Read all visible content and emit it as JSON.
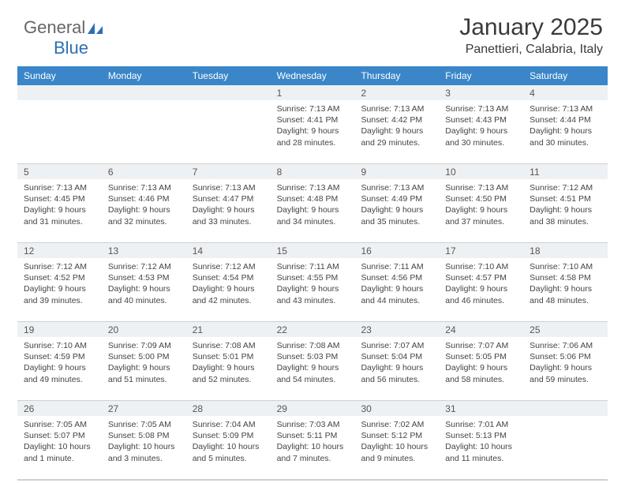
{
  "logo": {
    "part1": "General",
    "part2": "Blue"
  },
  "title": {
    "month": "January 2025",
    "location": "Panettieri, Calabria, Italy"
  },
  "colors": {
    "header_bg": "#3a86c8",
    "header_text": "#ffffff",
    "daynum_bg": "#eef1f4",
    "divider": "#d8d8d8",
    "text": "#444444",
    "logo_gray": "#666666",
    "logo_blue": "#2d6fb5"
  },
  "day_headers": [
    "Sunday",
    "Monday",
    "Tuesday",
    "Wednesday",
    "Thursday",
    "Friday",
    "Saturday"
  ],
  "weeks": [
    {
      "nums": [
        "",
        "",
        "",
        "1",
        "2",
        "3",
        "4"
      ],
      "cells": [
        {
          "sunrise": "",
          "sunset": "",
          "daylight": ""
        },
        {
          "sunrise": "",
          "sunset": "",
          "daylight": ""
        },
        {
          "sunrise": "",
          "sunset": "",
          "daylight": ""
        },
        {
          "sunrise": "Sunrise: 7:13 AM",
          "sunset": "Sunset: 4:41 PM",
          "daylight": "Daylight: 9 hours and 28 minutes."
        },
        {
          "sunrise": "Sunrise: 7:13 AM",
          "sunset": "Sunset: 4:42 PM",
          "daylight": "Daylight: 9 hours and 29 minutes."
        },
        {
          "sunrise": "Sunrise: 7:13 AM",
          "sunset": "Sunset: 4:43 PM",
          "daylight": "Daylight: 9 hours and 30 minutes."
        },
        {
          "sunrise": "Sunrise: 7:13 AM",
          "sunset": "Sunset: 4:44 PM",
          "daylight": "Daylight: 9 hours and 30 minutes."
        }
      ]
    },
    {
      "nums": [
        "5",
        "6",
        "7",
        "8",
        "9",
        "10",
        "11"
      ],
      "cells": [
        {
          "sunrise": "Sunrise: 7:13 AM",
          "sunset": "Sunset: 4:45 PM",
          "daylight": "Daylight: 9 hours and 31 minutes."
        },
        {
          "sunrise": "Sunrise: 7:13 AM",
          "sunset": "Sunset: 4:46 PM",
          "daylight": "Daylight: 9 hours and 32 minutes."
        },
        {
          "sunrise": "Sunrise: 7:13 AM",
          "sunset": "Sunset: 4:47 PM",
          "daylight": "Daylight: 9 hours and 33 minutes."
        },
        {
          "sunrise": "Sunrise: 7:13 AM",
          "sunset": "Sunset: 4:48 PM",
          "daylight": "Daylight: 9 hours and 34 minutes."
        },
        {
          "sunrise": "Sunrise: 7:13 AM",
          "sunset": "Sunset: 4:49 PM",
          "daylight": "Daylight: 9 hours and 35 minutes."
        },
        {
          "sunrise": "Sunrise: 7:13 AM",
          "sunset": "Sunset: 4:50 PM",
          "daylight": "Daylight: 9 hours and 37 minutes."
        },
        {
          "sunrise": "Sunrise: 7:12 AM",
          "sunset": "Sunset: 4:51 PM",
          "daylight": "Daylight: 9 hours and 38 minutes."
        }
      ]
    },
    {
      "nums": [
        "12",
        "13",
        "14",
        "15",
        "16",
        "17",
        "18"
      ],
      "cells": [
        {
          "sunrise": "Sunrise: 7:12 AM",
          "sunset": "Sunset: 4:52 PM",
          "daylight": "Daylight: 9 hours and 39 minutes."
        },
        {
          "sunrise": "Sunrise: 7:12 AM",
          "sunset": "Sunset: 4:53 PM",
          "daylight": "Daylight: 9 hours and 40 minutes."
        },
        {
          "sunrise": "Sunrise: 7:12 AM",
          "sunset": "Sunset: 4:54 PM",
          "daylight": "Daylight: 9 hours and 42 minutes."
        },
        {
          "sunrise": "Sunrise: 7:11 AM",
          "sunset": "Sunset: 4:55 PM",
          "daylight": "Daylight: 9 hours and 43 minutes."
        },
        {
          "sunrise": "Sunrise: 7:11 AM",
          "sunset": "Sunset: 4:56 PM",
          "daylight": "Daylight: 9 hours and 44 minutes."
        },
        {
          "sunrise": "Sunrise: 7:10 AM",
          "sunset": "Sunset: 4:57 PM",
          "daylight": "Daylight: 9 hours and 46 minutes."
        },
        {
          "sunrise": "Sunrise: 7:10 AM",
          "sunset": "Sunset: 4:58 PM",
          "daylight": "Daylight: 9 hours and 48 minutes."
        }
      ]
    },
    {
      "nums": [
        "19",
        "20",
        "21",
        "22",
        "23",
        "24",
        "25"
      ],
      "cells": [
        {
          "sunrise": "Sunrise: 7:10 AM",
          "sunset": "Sunset: 4:59 PM",
          "daylight": "Daylight: 9 hours and 49 minutes."
        },
        {
          "sunrise": "Sunrise: 7:09 AM",
          "sunset": "Sunset: 5:00 PM",
          "daylight": "Daylight: 9 hours and 51 minutes."
        },
        {
          "sunrise": "Sunrise: 7:08 AM",
          "sunset": "Sunset: 5:01 PM",
          "daylight": "Daylight: 9 hours and 52 minutes."
        },
        {
          "sunrise": "Sunrise: 7:08 AM",
          "sunset": "Sunset: 5:03 PM",
          "daylight": "Daylight: 9 hours and 54 minutes."
        },
        {
          "sunrise": "Sunrise: 7:07 AM",
          "sunset": "Sunset: 5:04 PM",
          "daylight": "Daylight: 9 hours and 56 minutes."
        },
        {
          "sunrise": "Sunrise: 7:07 AM",
          "sunset": "Sunset: 5:05 PM",
          "daylight": "Daylight: 9 hours and 58 minutes."
        },
        {
          "sunrise": "Sunrise: 7:06 AM",
          "sunset": "Sunset: 5:06 PM",
          "daylight": "Daylight: 9 hours and 59 minutes."
        }
      ]
    },
    {
      "nums": [
        "26",
        "27",
        "28",
        "29",
        "30",
        "31",
        ""
      ],
      "cells": [
        {
          "sunrise": "Sunrise: 7:05 AM",
          "sunset": "Sunset: 5:07 PM",
          "daylight": "Daylight: 10 hours and 1 minute."
        },
        {
          "sunrise": "Sunrise: 7:05 AM",
          "sunset": "Sunset: 5:08 PM",
          "daylight": "Daylight: 10 hours and 3 minutes."
        },
        {
          "sunrise": "Sunrise: 7:04 AM",
          "sunset": "Sunset: 5:09 PM",
          "daylight": "Daylight: 10 hours and 5 minutes."
        },
        {
          "sunrise": "Sunrise: 7:03 AM",
          "sunset": "Sunset: 5:11 PM",
          "daylight": "Daylight: 10 hours and 7 minutes."
        },
        {
          "sunrise": "Sunrise: 7:02 AM",
          "sunset": "Sunset: 5:12 PM",
          "daylight": "Daylight: 10 hours and 9 minutes."
        },
        {
          "sunrise": "Sunrise: 7:01 AM",
          "sunset": "Sunset: 5:13 PM",
          "daylight": "Daylight: 10 hours and 11 minutes."
        },
        {
          "sunrise": "",
          "sunset": "",
          "daylight": ""
        }
      ]
    }
  ]
}
